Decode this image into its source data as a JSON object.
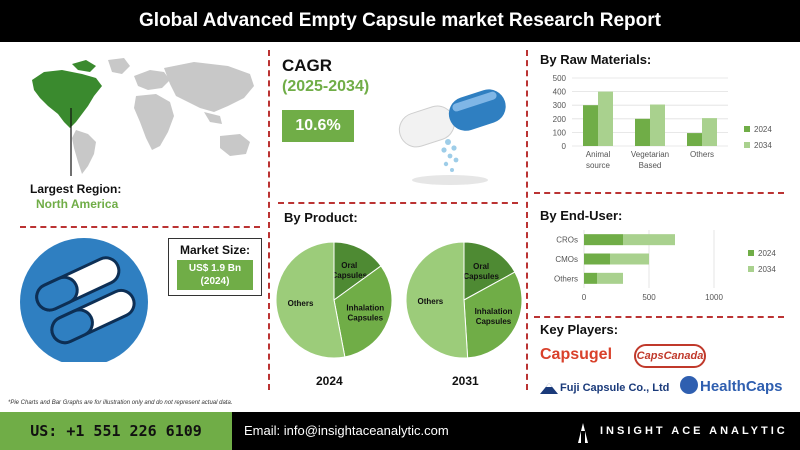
{
  "header": {
    "title": "Global Advanced Empty Capsule market Research Report"
  },
  "region": {
    "label": "Largest Region:",
    "value": "North America"
  },
  "cagr": {
    "title": "CAGR",
    "period": "(2025-2034)",
    "value": "10.6%"
  },
  "market_size": {
    "label": "Market Size:",
    "value_line1": "US$ 1.9 Bn",
    "value_line2": "(2024)"
  },
  "raw_materials": {
    "title": "By Raw Materials:"
  },
  "product": {
    "title": "By Product:"
  },
  "end_user": {
    "title": "By End-User:"
  },
  "key_players": {
    "title": "Key Players:",
    "names": [
      "Capsugel",
      "CapsCanada",
      "Fuji Capsule Co., Ltd",
      "HealthCaps"
    ]
  },
  "footnote": "*Pie Charts and Bar Graphs are for illustration only and do not represent actual data.",
  "footer": {
    "phone": "US: +1 551 226 6109",
    "email": "Email: info@insightaceanalytic.com",
    "brand": "INSIGHT ACE ANALYTIC"
  },
  "colors": {
    "dark_green": "#70ad47",
    "light_green": "#a9d18e",
    "pie_dark": "#4e8a33",
    "pie_mid": "#70ad47",
    "pie_light": "#9ccc7a",
    "accent_red": "#b33333"
  },
  "chart_data": [
    {
      "type": "bar",
      "title": "By Raw Materials:",
      "categories": [
        [
          "Animal",
          "source"
        ],
        [
          "Vegetarian",
          "Based"
        ],
        [
          "Others"
        ]
      ],
      "series": [
        {
          "name": "2024",
          "values": [
            300,
            200,
            95
          ]
        },
        {
          "name": "2034",
          "values": [
            400,
            305,
            205
          ]
        }
      ],
      "ylim": [
        0,
        500
      ],
      "yticks": [
        0,
        100,
        200,
        300,
        400,
        500
      ],
      "legend": "right"
    },
    {
      "type": "bar",
      "orientation": "horizontal",
      "title": "By End-User:",
      "categories": [
        "CROs",
        "CMOs",
        "Others"
      ],
      "series": [
        {
          "name": "2024",
          "values": [
            300,
            200,
            100
          ]
        },
        {
          "name": "2034",
          "values": [
            400,
            300,
            200
          ]
        }
      ],
      "xlim": [
        0,
        1000
      ],
      "xticks": [
        0,
        500,
        1000
      ],
      "legend": "right"
    },
    {
      "type": "pie",
      "title": "2024",
      "labels": [
        "Oral Capsules",
        "Inhalation Capsules",
        "Others"
      ],
      "values": [
        15,
        32,
        53
      ]
    },
    {
      "type": "pie",
      "title": "2031",
      "labels": [
        "Oral Capsules",
        "Inhalation Capsules",
        "Others"
      ],
      "values": [
        17,
        32,
        51
      ]
    }
  ]
}
